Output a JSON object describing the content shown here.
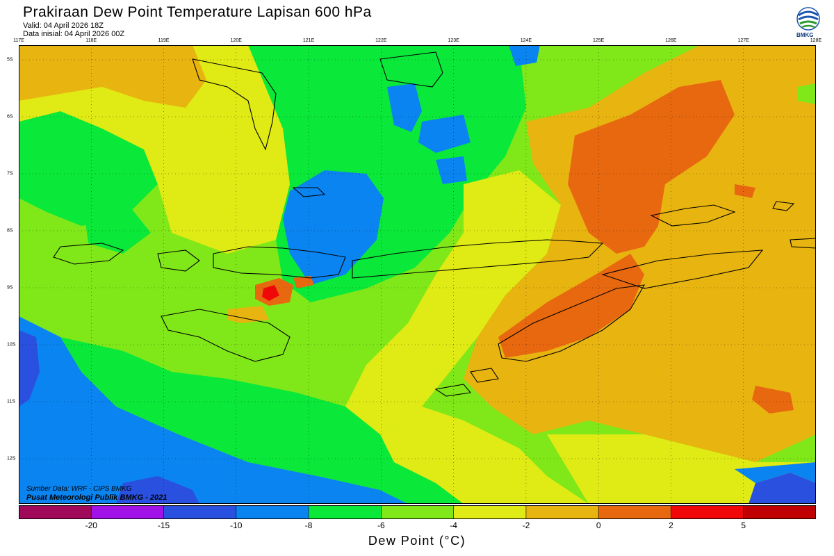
{
  "header": {
    "title": "Prakiraan Dew Point Temperature Lapisan 600 hPa",
    "valid": "Valid: 04 April 2026 18Z",
    "init": "Data inisial: 04 April 2026 00Z"
  },
  "logo": {
    "text": "BMKG",
    "icon": "bmkg-logo-icon"
  },
  "map": {
    "lon_ticks": [
      "117E",
      "118E",
      "119E",
      "120E",
      "121E",
      "122E",
      "123E",
      "124E",
      "125E",
      "126E",
      "127E",
      "128E"
    ],
    "lat_ticks": [
      "5S",
      "6S",
      "7S",
      "8S",
      "9S",
      "10S",
      "11S",
      "12S"
    ],
    "source_line1": "Sumber Data: WRF - CIPS BMKG",
    "source_line2": "Pusat Meteorologi Publik BMKG - 2021"
  },
  "legend": {
    "labels": [
      "-20",
      "-15",
      "-10",
      "-8",
      "-6",
      "-4",
      "-2",
      "0",
      "2",
      "5"
    ],
    "unit_label": "Dew Point (°C)",
    "colors": [
      "#a0085a",
      "#a012e8",
      "#2a50e0",
      "#0a84f0",
      "#0ae83a",
      "#80e818",
      "#e0ea14",
      "#e8b410",
      "#e86810",
      "#f00808",
      "#c00000"
    ]
  }
}
